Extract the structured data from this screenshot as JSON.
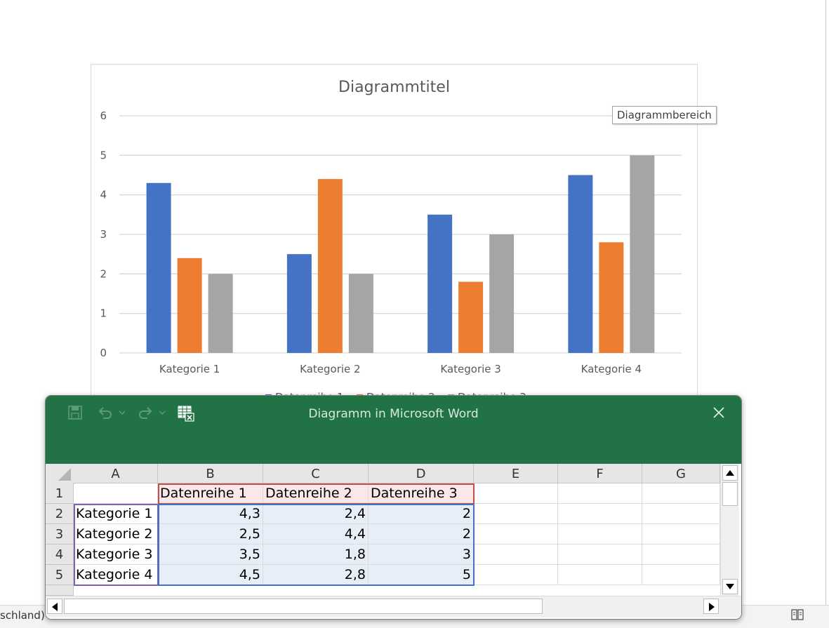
{
  "document": {
    "status_language": "schland)"
  },
  "chart_data": {
    "type": "bar",
    "title": "Diagrammtitel",
    "categories": [
      "Kategorie 1",
      "Kategorie 2",
      "Kategorie 3",
      "Kategorie 4"
    ],
    "series": [
      {
        "name": "Datenreihe 1",
        "values": [
          4.3,
          2.5,
          3.5,
          4.5
        ],
        "color": "#4472c4"
      },
      {
        "name": "Datenreihe 2",
        "values": [
          2.4,
          4.4,
          1.8,
          2.8
        ],
        "color": "#ed7d31"
      },
      {
        "name": "Datenreihe 3",
        "values": [
          2,
          2,
          3,
          5
        ],
        "color": "#a5a5a5"
      }
    ],
    "ylim": [
      0,
      6
    ],
    "yticks": [
      "0",
      "1",
      "2",
      "3",
      "4",
      "5",
      "6"
    ],
    "grid": true,
    "legend": "bottom"
  },
  "tooltip": "Diagrammbereich",
  "excel": {
    "window_title": "Diagramm in Microsoft Word",
    "columns": [
      "A",
      "B",
      "C",
      "D",
      "E",
      "F",
      "G"
    ],
    "row_numbers": [
      "1",
      "2",
      "3",
      "4",
      "5"
    ],
    "rows": [
      [
        "",
        "Datenreihe 1",
        "Datenreihe 2",
        "Datenreihe 3",
        "",
        "",
        ""
      ],
      [
        "Kategorie 1",
        "4,3",
        "2,4",
        "2",
        "",
        "",
        ""
      ],
      [
        "Kategorie 2",
        "2,5",
        "4,4",
        "2",
        "",
        "",
        ""
      ],
      [
        "Kategorie 3",
        "3,5",
        "1,8",
        "3",
        "",
        "",
        ""
      ],
      [
        "Kategorie 4",
        "4,5",
        "2,8",
        "5",
        "",
        "",
        ""
      ]
    ],
    "brand_color": "#217346"
  }
}
